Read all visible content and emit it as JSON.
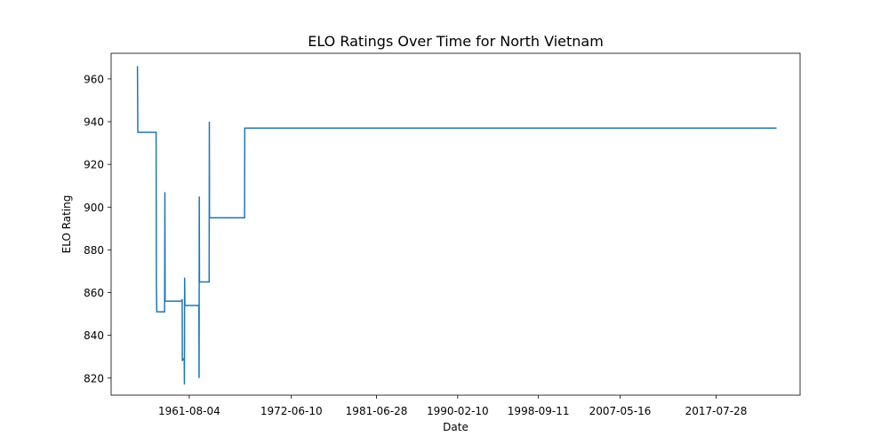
{
  "chart_data": {
    "type": "line",
    "title": "ELO Ratings Over Time for North Vietnam",
    "xlabel": "Date",
    "ylabel": "ELO Rating",
    "x_tick_labels": [
      "1961-08-04",
      "1972-06-10",
      "1981-06-28",
      "1990-02-10",
      "1998-09-11",
      "2007-05-16",
      "2017-07-28"
    ],
    "y_ticks": [
      820,
      840,
      860,
      880,
      900,
      920,
      940,
      960
    ],
    "xlim": [
      "1953-04-15",
      "2026-07-01"
    ],
    "ylim": [
      812,
      972
    ],
    "grid": false,
    "series": [
      {
        "color": "#1f77b4",
        "points": [
          [
            "1956-02-01",
            966
          ],
          [
            "1956-02-15",
            935
          ],
          [
            "1958-01-25",
            935
          ],
          [
            "1958-02-05",
            864
          ],
          [
            "1958-02-20",
            851
          ],
          [
            "1958-12-20",
            851
          ],
          [
            "1959-01-01",
            907
          ],
          [
            "1959-01-10",
            856
          ],
          [
            "1960-10-25",
            856
          ],
          [
            "1960-11-01",
            857
          ],
          [
            "1960-11-08",
            828
          ],
          [
            "1960-12-05",
            829
          ],
          [
            "1961-01-20",
            829
          ],
          [
            "1961-01-28",
            817
          ],
          [
            "1961-02-05",
            867
          ],
          [
            "1961-02-15",
            854
          ],
          [
            "1962-08-10",
            854
          ],
          [
            "1962-08-20",
            820
          ],
          [
            "1962-08-28",
            905
          ],
          [
            "1962-09-05",
            865
          ],
          [
            "1963-09-15",
            865
          ],
          [
            "1963-09-22",
            940
          ],
          [
            "1963-09-28",
            895
          ],
          [
            "1967-06-20",
            895
          ],
          [
            "1967-06-28",
            937
          ],
          [
            "2023-12-31",
            937
          ]
        ]
      }
    ]
  }
}
